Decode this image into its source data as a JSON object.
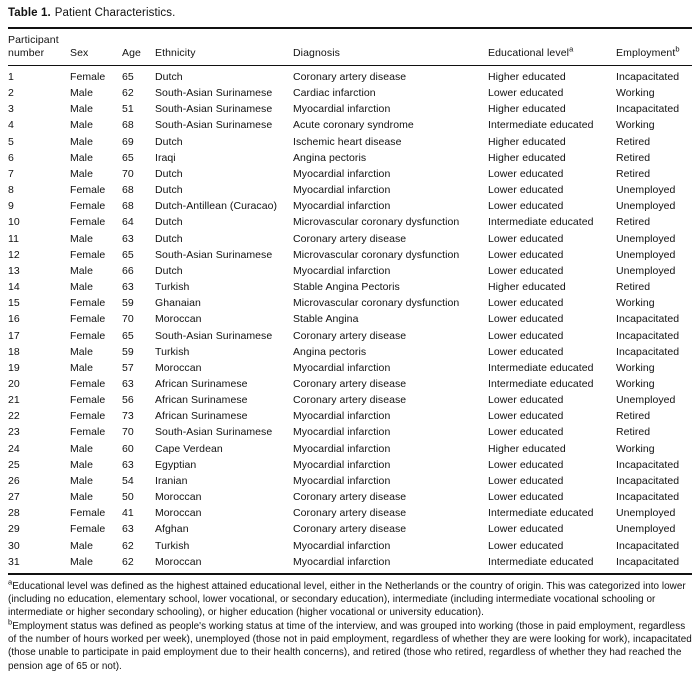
{
  "title": {
    "label": "Table 1.",
    "text": "Patient Characteristics."
  },
  "table": {
    "columns": [
      "Participant number",
      "Sex",
      "Age",
      "Ethnicity",
      "Diagnosis",
      "Educational level",
      "Employment"
    ],
    "column_superscripts": [
      "",
      "",
      "",
      "",
      "",
      "a",
      "b"
    ],
    "rows": [
      [
        "1",
        "Female",
        "65",
        "Dutch",
        "Coronary artery disease",
        "Higher educated",
        "Incapacitated"
      ],
      [
        "2",
        "Male",
        "62",
        "South-Asian Surinamese",
        "Cardiac infarction",
        "Lower educated",
        "Working"
      ],
      [
        "3",
        "Male",
        "51",
        "South-Asian Surinamese",
        "Myocardial infarction",
        "Higher educated",
        "Incapacitated"
      ],
      [
        "4",
        "Male",
        "68",
        "South-Asian Surinamese",
        "Acute coronary syndrome",
        "Intermediate educated",
        "Working"
      ],
      [
        "5",
        "Male",
        "69",
        "Dutch",
        "Ischemic heart disease",
        "Higher educated",
        "Retired"
      ],
      [
        "6",
        "Male",
        "65",
        "Iraqi",
        "Angina pectoris",
        "Higher educated",
        "Retired"
      ],
      [
        "7",
        "Male",
        "70",
        "Dutch",
        "Myocardial infarction",
        "Lower educated",
        "Retired"
      ],
      [
        "8",
        "Female",
        "68",
        "Dutch",
        "Myocardial infarction",
        "Lower educated",
        "Unemployed"
      ],
      [
        "9",
        "Female",
        "68",
        "Dutch-Antillean (Curacao)",
        "Myocardial infarction",
        "Lower educated",
        "Unemployed"
      ],
      [
        "10",
        "Female",
        "64",
        "Dutch",
        "Microvascular coronary dysfunction",
        "Intermediate educated",
        "Retired"
      ],
      [
        "11",
        "Male",
        "63",
        "Dutch",
        "Coronary artery disease",
        "Lower educated",
        "Unemployed"
      ],
      [
        "12",
        "Female",
        "65",
        "South-Asian Surinamese",
        "Microvascular coronary dysfunction",
        "Lower educated",
        "Unemployed"
      ],
      [
        "13",
        "Male",
        "66",
        "Dutch",
        "Myocardial infarction",
        "Lower educated",
        "Unemployed"
      ],
      [
        "14",
        "Male",
        "63",
        "Turkish",
        "Stable Angina Pectoris",
        "Higher educated",
        "Retired"
      ],
      [
        "15",
        "Female",
        "59",
        "Ghanaian",
        "Microvascular coronary dysfunction",
        "Lower educated",
        "Working"
      ],
      [
        "16",
        "Female",
        "70",
        "Moroccan",
        "Stable Angina",
        "Lower educated",
        "Incapacitated"
      ],
      [
        "17",
        "Female",
        "65",
        "South-Asian Surinamese",
        "Coronary artery disease",
        "Lower educated",
        "Incapacitated"
      ],
      [
        "18",
        "Male",
        "59",
        "Turkish",
        "Angina pectoris",
        "Lower educated",
        "Incapacitated"
      ],
      [
        "19",
        "Male",
        "57",
        "Moroccan",
        "Myocardial infarction",
        "Intermediate educated",
        "Working"
      ],
      [
        "20",
        "Female",
        "63",
        "African Surinamese",
        "Coronary artery disease",
        "Intermediate educated",
        "Working"
      ],
      [
        "21",
        "Female",
        "56",
        "African Surinamese",
        "Coronary artery disease",
        "Lower educated",
        "Unemployed"
      ],
      [
        "22",
        "Female",
        "73",
        "African Surinamese",
        "Myocardial infarction",
        "Lower educated",
        "Retired"
      ],
      [
        "23",
        "Female",
        "70",
        "South-Asian Surinamese",
        "Myocardial infarction",
        "Lower educated",
        "Retired"
      ],
      [
        "24",
        "Male",
        "60",
        "Cape Verdean",
        "Myocardial infarction",
        "Higher educated",
        "Working"
      ],
      [
        "25",
        "Male",
        "63",
        "Egyptian",
        "Myocardial infarction",
        "Lower educated",
        "Incapacitated"
      ],
      [
        "26",
        "Male",
        "54",
        "Iranian",
        "Myocardial infarction",
        "Lower educated",
        "Incapacitated"
      ],
      [
        "27",
        "Male",
        "50",
        "Moroccan",
        "Coronary artery disease",
        "Lower educated",
        "Incapacitated"
      ],
      [
        "28",
        "Female",
        "41",
        "Moroccan",
        "Coronary artery disease",
        "Intermediate educated",
        "Unemployed"
      ],
      [
        "29",
        "Female",
        "63",
        "Afghan",
        "Coronary artery disease",
        "Lower educated",
        "Unemployed"
      ],
      [
        "30",
        "Male",
        "62",
        "Turkish",
        "Myocardial infarction",
        "Lower educated",
        "Incapacitated"
      ],
      [
        "31",
        "Male",
        "62",
        "Moroccan",
        "Myocardial infarction",
        "Intermediate educated",
        "Incapacitated"
      ]
    ]
  },
  "footnotes": [
    {
      "marker": "a",
      "text": "Educational level was defined as the highest attained educational level, either in the Netherlands or the country of origin. This was categorized into lower (including no education, elementary school, lower vocational, or secondary education), intermediate (including intermediate vocational schooling or intermediate or higher secondary schooling), or higher education (higher vocational or university education)."
    },
    {
      "marker": "b",
      "text": "Employment status was defined as people's working status at time of the interview, and was grouped into working (those in paid employment, regardless of the number of hours worked per week), unemployed (those not in paid employment, regardless of whether they are were looking for work), incapacitated (those unable to participate in paid employment due to their health concerns), and retired (those who retired, regardless of whether they had reached the pension age of 65 or not)."
    }
  ],
  "colors": {
    "text": "#111111",
    "rule": "#111111",
    "background": "#ffffff"
  }
}
